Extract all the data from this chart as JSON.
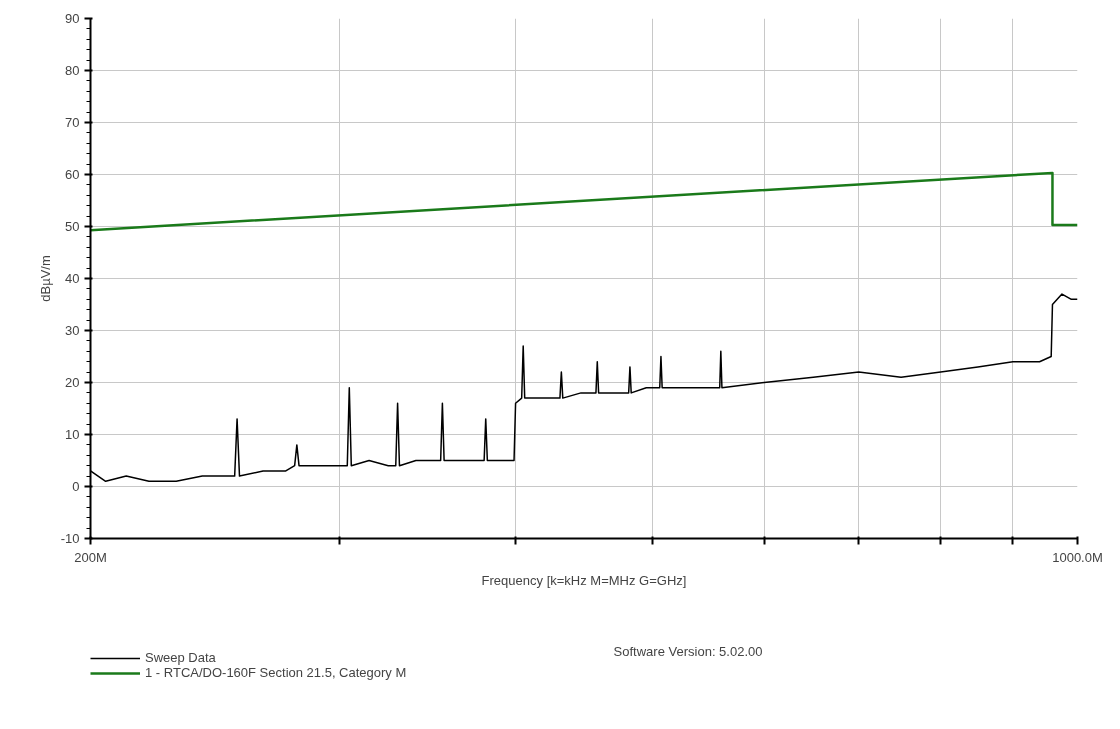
{
  "chart_data": {
    "type": "line",
    "xlabel": "Frequency [k=kHz M=MHz G=GHz]",
    "ylabel": "dBµV/m",
    "log": "x",
    "grid": true,
    "legend": "bottom left",
    "marker": "none",
    "line_style": "solid",
    "xlim": [
      200,
      1000
    ],
    "xticks": [
      {
        "value": 200,
        "label": "200M"
      },
      {
        "value": 300,
        "label": null
      },
      {
        "value": 400,
        "label": null
      },
      {
        "value": 500,
        "label": null
      },
      {
        "value": 600,
        "label": null
      },
      {
        "value": 700,
        "label": null
      },
      {
        "value": 800,
        "label": null
      },
      {
        "value": 900,
        "label": null
      },
      {
        "value": 1000,
        "label": "1000.0M"
      }
    ],
    "ylim": [
      -10,
      90
    ],
    "yticks": [
      -10,
      0,
      10,
      20,
      30,
      40,
      50,
      60,
      70,
      80,
      90
    ],
    "annotations": [
      "Software Version: 5.02.00"
    ],
    "series": [
      {
        "name": "Sweep Data",
        "color": "#000000",
        "x": [
          200,
          205,
          212,
          220,
          230,
          240,
          250,
          253,
          254,
          255,
          265,
          275,
          279,
          280,
          281,
          290,
          300,
          304,
          305,
          306,
          315,
          325,
          329,
          330,
          331,
          340,
          354,
          355,
          356,
          365,
          380,
          381,
          382,
          390,
          399,
          400,
          404,
          405,
          406,
          415,
          430,
          431,
          432,
          445,
          456,
          457,
          458,
          470,
          481,
          482,
          483,
          495,
          506,
          507,
          508,
          530,
          558,
          559,
          560,
          600,
          650,
          700,
          750,
          800,
          850,
          900,
          940,
          958,
          960,
          975,
          990,
          1000
        ],
        "values": [
          3,
          1,
          2,
          1,
          1,
          2,
          2,
          2,
          13,
          2,
          3,
          3,
          4,
          8,
          4,
          4,
          4,
          4,
          19,
          4,
          5,
          4,
          4,
          16,
          4,
          5,
          5,
          16,
          5,
          5,
          5,
          13,
          5,
          5,
          5,
          16,
          17,
          27,
          17,
          17,
          17,
          22,
          17,
          18,
          18,
          24,
          18,
          18,
          18,
          23,
          18,
          19,
          19,
          25,
          19,
          19,
          19,
          26,
          19,
          20,
          21,
          22,
          21,
          22,
          23,
          24,
          24,
          25,
          35,
          37,
          36,
          36
        ]
      },
      {
        "name": "1 - RTCA/DO-160F Section 21.5, Category M",
        "color": "#1a7a1a",
        "x": [
          200,
          960,
          960,
          1000
        ],
        "values": [
          49.3,
          60.3,
          50.3,
          50.3
        ]
      }
    ]
  }
}
